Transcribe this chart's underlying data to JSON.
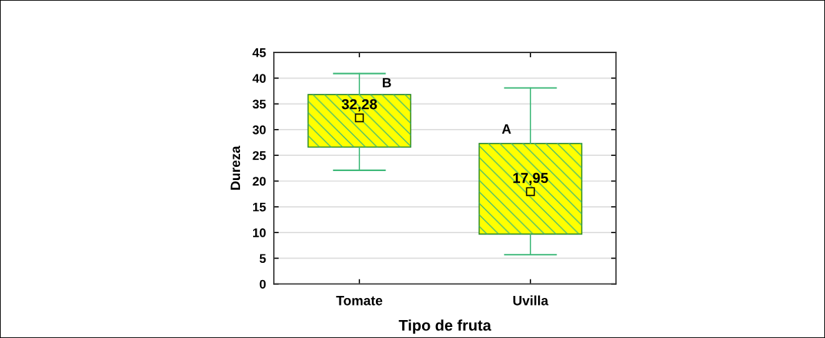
{
  "chart_data": {
    "type": "box",
    "xlabel": "Tipo de fruta",
    "ylabel": "Dureza",
    "categories": [
      "Tomate",
      "Uvilla"
    ],
    "boxes": [
      {
        "low": 22.1,
        "q1": 26.6,
        "median": 32.28,
        "q3": 36.8,
        "high": 40.9
      },
      {
        "low": 5.7,
        "q1": 9.7,
        "median": 17.95,
        "q3": 27.3,
        "high": 38.1
      }
    ],
    "value_labels": [
      "32,28",
      "17,95"
    ],
    "color": "#ffff00",
    "marker": "square",
    "ylim": [
      0,
      45
    ],
    "yticks": [
      0,
      5,
      10,
      15,
      20,
      25,
      30,
      35,
      40,
      45
    ],
    "grid": "y",
    "annotations": [
      {
        "text": "B",
        "x": "Tomate",
        "y": 38.9
      },
      {
        "text": "A",
        "x": "Uvilla",
        "y": 29.9
      }
    ]
  }
}
